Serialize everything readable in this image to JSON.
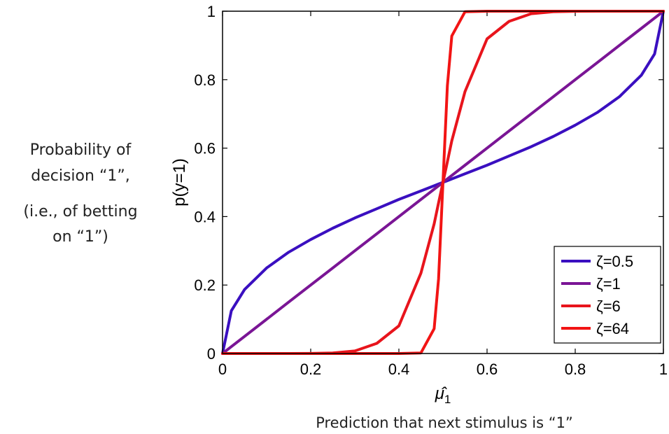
{
  "annotations": {
    "left_line1": "Probability of",
    "left_line2": "decision “1”,",
    "left_line3": "(i.e., of betting",
    "left_line4": "on “1”)",
    "bottom": "Prediction that next stimulus is “1”"
  },
  "chart_data": {
    "type": "line",
    "title": "",
    "xlabel": "μ̂1",
    "ylabel": "p(y=1)",
    "xlim": [
      0,
      1
    ],
    "ylim": [
      0,
      1
    ],
    "xticks": [
      "0",
      "0.2",
      "0.4",
      "0.6",
      "0.8",
      "1"
    ],
    "yticks": [
      "0",
      "0.2",
      "0.4",
      "0.6",
      "0.8",
      "1"
    ],
    "grid": false,
    "legend_position": "bottom-right",
    "x": [
      0,
      0.02,
      0.05,
      0.1,
      0.15,
      0.2,
      0.25,
      0.3,
      0.35,
      0.4,
      0.45,
      0.48,
      0.49,
      0.5,
      0.51,
      0.52,
      0.55,
      0.6,
      0.65,
      0.7,
      0.75,
      0.8,
      0.85,
      0.9,
      0.95,
      0.98,
      1
    ],
    "series": [
      {
        "name": "ζ=0.5",
        "color": "#3a0fc0",
        "values": [
          0,
          0.125,
          0.187,
          0.25,
          0.296,
          0.333,
          0.366,
          0.396,
          0.423,
          0.45,
          0.475,
          0.49,
          0.495,
          0.5,
          0.505,
          0.51,
          0.525,
          0.55,
          0.577,
          0.604,
          0.634,
          0.667,
          0.704,
          0.75,
          0.813,
          0.875,
          1
        ]
      },
      {
        "name": "ζ=1",
        "color": "#7a1595",
        "values": [
          0,
          0.02,
          0.05,
          0.1,
          0.15,
          0.2,
          0.25,
          0.3,
          0.35,
          0.4,
          0.45,
          0.48,
          0.49,
          0.5,
          0.51,
          0.52,
          0.55,
          0.6,
          0.65,
          0.7,
          0.75,
          0.8,
          0.85,
          0.9,
          0.95,
          0.98,
          1
        ]
      },
      {
        "name": "ζ=6",
        "color": "#e8141c",
        "values": [
          0,
          0,
          0,
          0,
          0,
          0.0002,
          0.0014,
          0.0073,
          0.0296,
          0.0807,
          0.2347,
          0.3788,
          0.4401,
          0.5,
          0.5599,
          0.6212,
          0.7653,
          0.9193,
          0.9704,
          0.9927,
          0.9986,
          0.9998,
          1,
          1,
          1,
          1,
          1
        ]
      },
      {
        "name": "ζ=64",
        "color": "#f21414",
        "values": [
          0,
          0,
          0,
          0,
          0,
          0,
          0,
          0,
          0,
          0,
          0.0017,
          0.0723,
          0.2178,
          0.5,
          0.7822,
          0.9277,
          0.9983,
          1,
          1,
          1,
          1,
          1,
          1,
          1,
          1,
          1,
          1
        ]
      }
    ]
  }
}
